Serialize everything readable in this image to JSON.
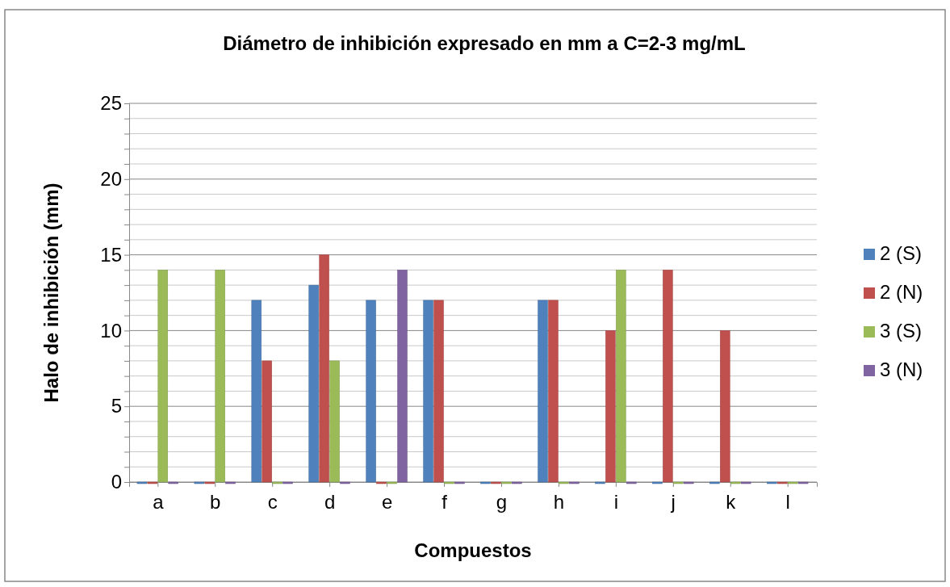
{
  "chart_data": {
    "type": "bar",
    "title": "Diámetro de inhibición expresado en mm a C=2-3 mg/mL",
    "xlabel": "Compuestos",
    "ylabel": "Halo de inhibición (mm)",
    "categories": [
      "a",
      "b",
      "c",
      "d",
      "e",
      "f",
      "g",
      "h",
      "i",
      "j",
      "k",
      "l"
    ],
    "series": [
      {
        "name": "2 (S)",
        "color": "#4f81bd",
        "values": [
          0,
          0,
          12,
          13,
          12,
          12,
          0,
          12,
          0,
          0,
          0,
          0
        ]
      },
      {
        "name": "2 (N)",
        "color": "#c0504d",
        "values": [
          0,
          0,
          8,
          15,
          0,
          12,
          0,
          12,
          10,
          14,
          10,
          0
        ]
      },
      {
        "name": "3 (S)",
        "color": "#9bbb59",
        "values": [
          14,
          14,
          0,
          8,
          0,
          0,
          0,
          0,
          14,
          0,
          0,
          0
        ]
      },
      {
        "name": "3 (N)",
        "color": "#8064a2",
        "values": [
          0,
          0,
          0,
          0,
          14,
          0,
          0,
          0,
          0,
          0,
          0,
          0
        ]
      }
    ],
    "ylim": [
      0,
      25
    ],
    "yticks": [
      0,
      {
        "value": 1,
        "label": null
      },
      {
        "value": 2,
        "label": null
      },
      {
        "value": 3,
        "label": null
      },
      {
        "value": 4,
        "label": null
      },
      5,
      {
        "value": 6,
        "label": null
      },
      {
        "value": 7,
        "label": null
      },
      {
        "value": 8,
        "label": null
      },
      {
        "value": 9,
        "label": null
      },
      10,
      {
        "value": 11,
        "label": null
      },
      {
        "value": 12,
        "label": null
      },
      {
        "value": 13,
        "label": null
      },
      {
        "value": 14,
        "label": null
      },
      15,
      {
        "value": 16,
        "label": null
      },
      {
        "value": 17,
        "label": null
      },
      {
        "value": 18,
        "label": null
      },
      {
        "value": 19,
        "label": null
      },
      20,
      {
        "value": 21,
        "label": null
      },
      {
        "value": 22,
        "label": null
      },
      {
        "value": 23,
        "label": null
      },
      {
        "value": 24,
        "label": null
      },
      25
    ],
    "grid": true,
    "legend": "right"
  }
}
